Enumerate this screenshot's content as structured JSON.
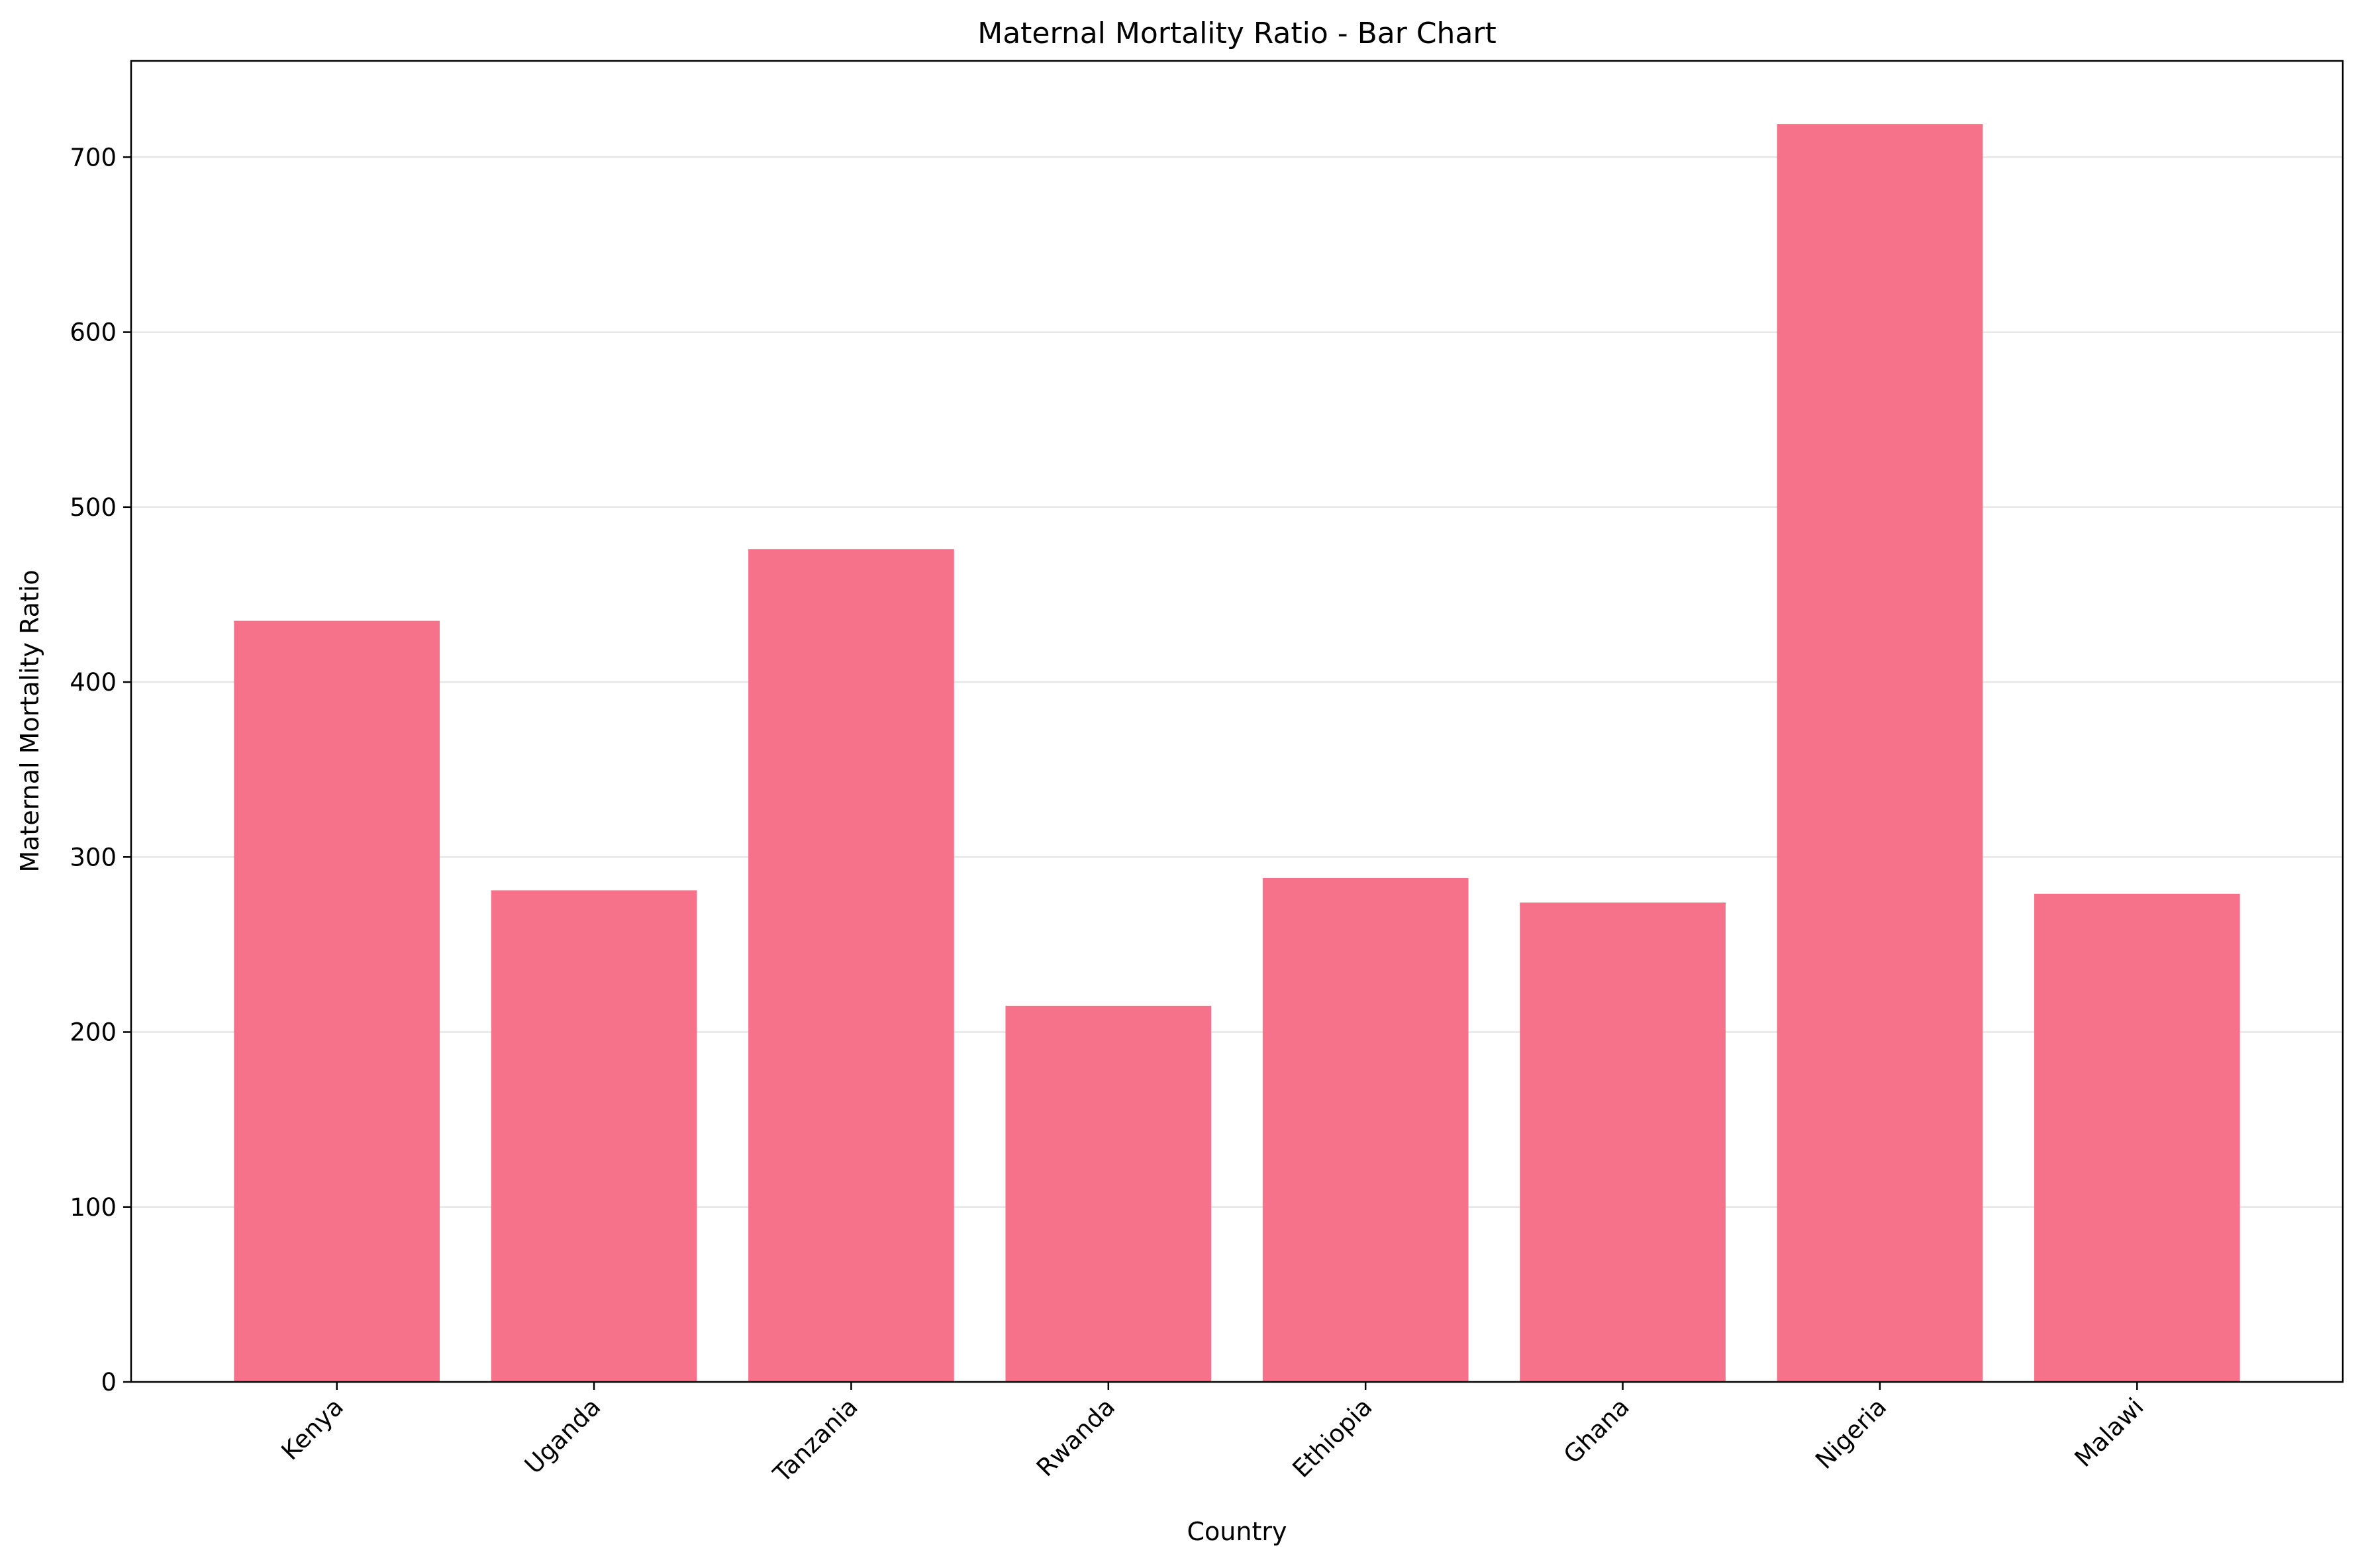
{
  "chart_data": {
    "type": "bar",
    "title": "Maternal Mortality Ratio - Bar Chart",
    "xlabel": "Country",
    "ylabel": "Maternal Mortality Ratio",
    "categories": [
      "Kenya",
      "Uganda",
      "Tanzania",
      "Rwanda",
      "Ethiopia",
      "Ghana",
      "Nigeria",
      "Malawi"
    ],
    "values": [
      435,
      281,
      476,
      215,
      288,
      274,
      719,
      279
    ],
    "ylim": [
      0,
      755
    ],
    "yticks": [
      0,
      100,
      200,
      300,
      400,
      500,
      600,
      700
    ],
    "grid": "horizontal",
    "legend": "none",
    "bar_color": "#f6728a",
    "grid_color": "#e6e6e6",
    "x_tick_rotation_deg": 45
  }
}
